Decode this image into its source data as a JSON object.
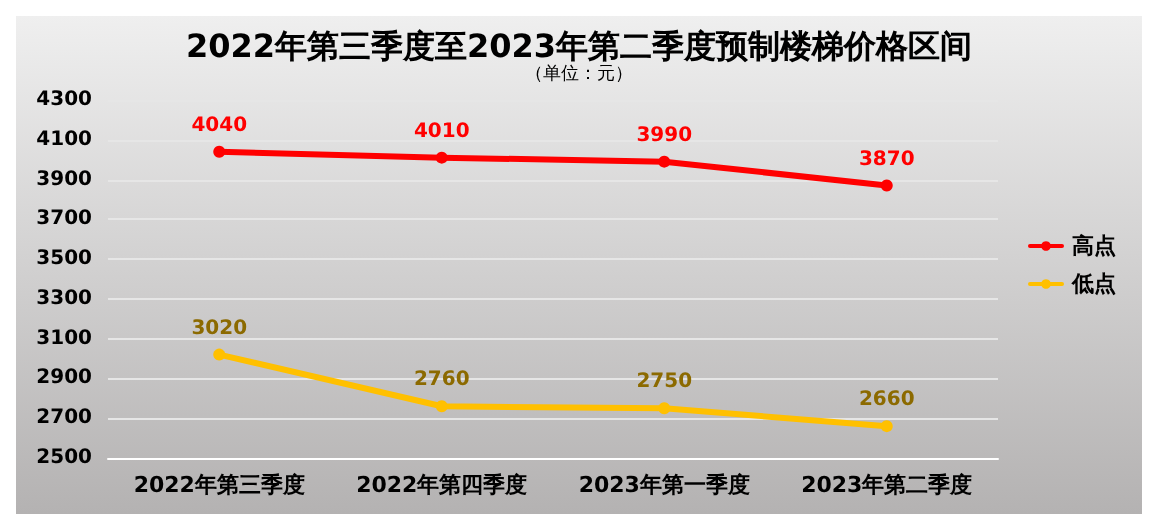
{
  "chart_data": {
    "type": "line",
    "title": "2022年第三季度至2023年第二季度预制楼梯价格区间",
    "subtitle": "（单位：元）",
    "categories": [
      "2022年第三季度",
      "2022年第四季度",
      "2023年第一季度",
      "2023年第二季度"
    ],
    "series": [
      {
        "name": "高点",
        "color": "#ff0000",
        "values": [
          4040,
          4010,
          3990,
          3870
        ]
      },
      {
        "name": "低点",
        "color": "#ffc000",
        "values": [
          3020,
          2760,
          2750,
          2660
        ]
      }
    ],
    "ylim": [
      2500,
      4300
    ],
    "yticks": [
      2500,
      2700,
      2900,
      3100,
      3300,
      3500,
      3700,
      3900,
      4100,
      4300
    ],
    "grid": "y",
    "legend": "right",
    "marker": "circle",
    "line_style": "solid",
    "data_labels": true
  }
}
